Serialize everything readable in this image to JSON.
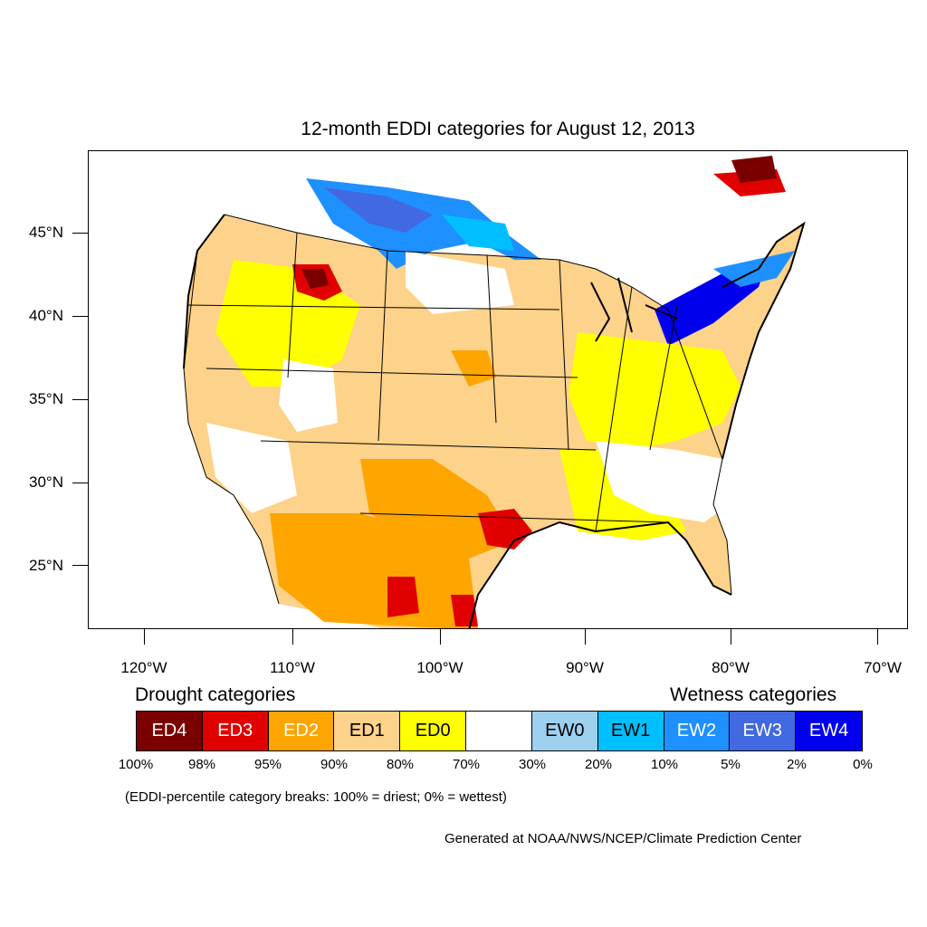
{
  "title": "12-month EDDI categories for August 12, 2013",
  "axes": {
    "lat_labels": [
      "45°N",
      "40°N",
      "35°N",
      "30°N",
      "25°N"
    ],
    "lon_labels": [
      "120°W",
      "110°W",
      "100°W",
      "90°W",
      "80°W",
      "70°W"
    ]
  },
  "legend": {
    "drought_heading": "Drought categories",
    "wetness_heading": "Wetness categories",
    "categories": [
      {
        "label": "ED4",
        "color": "#7a0000",
        "text_color": "#ffffff"
      },
      {
        "label": "ED3",
        "color": "#e00000",
        "text_color": "#ffffff"
      },
      {
        "label": "ED2",
        "color": "#ffa500",
        "text_color": "#ffffff"
      },
      {
        "label": "ED1",
        "color": "#fdd28a",
        "text_color": "#000000"
      },
      {
        "label": "ED0",
        "color": "#ffff00",
        "text_color": "#000000"
      },
      {
        "label": "",
        "color": "#ffffff",
        "text_color": "#000000"
      },
      {
        "label": "EW0",
        "color": "#9ed0f0",
        "text_color": "#000000"
      },
      {
        "label": "EW1",
        "color": "#00bfff",
        "text_color": "#000000"
      },
      {
        "label": "EW2",
        "color": "#1e90ff",
        "text_color": "#ffffff"
      },
      {
        "label": "EW3",
        "color": "#4169e1",
        "text_color": "#ffffff"
      },
      {
        "label": "EW4",
        "color": "#0000ee",
        "text_color": "#ffffff"
      }
    ],
    "percentiles": [
      "100%",
      "98%",
      "95%",
      "90%",
      "80%",
      "70%",
      "30%",
      "20%",
      "10%",
      "5%",
      "2%",
      "0%"
    ]
  },
  "note": "(EDDI-percentile category breaks: 100% = driest; 0% = wettest)",
  "credit": "Generated at NOAA/NWS/NCEP/Climate Prediction Center"
}
